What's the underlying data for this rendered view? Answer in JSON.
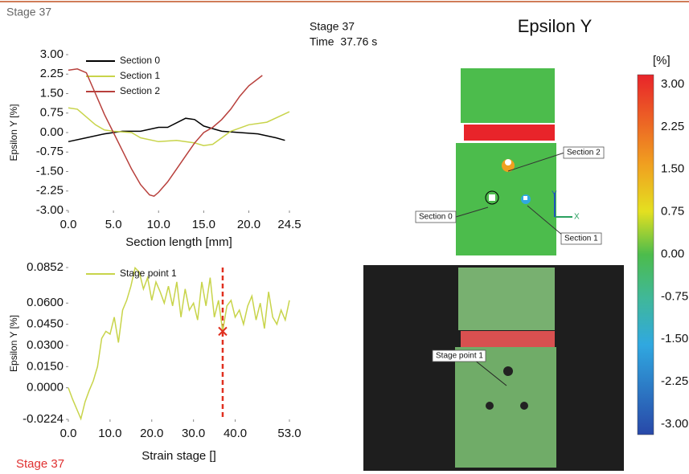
{
  "header": {
    "tab": "Stage 37",
    "stage": "Stage 37",
    "time": "Time  37.76 s",
    "title": "Epsilon Y"
  },
  "chart_data": [
    {
      "type": "line",
      "xlabel": "Section length [mm]",
      "ylabel": "Epsilon Y [%]",
      "xlim": [
        0,
        24.5
      ],
      "ylim": [
        -3,
        3
      ],
      "xticks": [
        {
          "value": 0,
          "label": "0.0"
        },
        {
          "value": 5,
          "label": "5.0"
        },
        {
          "value": 10,
          "label": "10.0"
        },
        {
          "value": 15,
          "label": "15.0"
        },
        {
          "value": 20,
          "label": "20.0"
        },
        {
          "value": 24.5,
          "label": "24.5"
        }
      ],
      "yticks": [
        {
          "value": 3,
          "label": "3.00"
        },
        {
          "value": 2.25,
          "label": "2.25"
        },
        {
          "value": 1.5,
          "label": "1.50"
        },
        {
          "value": 0.75,
          "label": "0.75"
        },
        {
          "value": 0,
          "label": "0.00"
        },
        {
          "value": -0.75,
          "label": "-0.75"
        },
        {
          "value": -1.5,
          "label": "-1.50"
        },
        {
          "value": -2.25,
          "label": "-2.25"
        },
        {
          "value": -3,
          "label": "-3.00"
        }
      ],
      "series": [
        {
          "name": "Section 0",
          "color": "#000000",
          "x": [
            0,
            2,
            4,
            5,
            6,
            8,
            10,
            11,
            13,
            14,
            15,
            17,
            19,
            21,
            23,
            24
          ],
          "values": [
            -0.35,
            -0.2,
            -0.05,
            0,
            0.05,
            0.05,
            0.2,
            0.2,
            0.55,
            0.5,
            0.25,
            0.05,
            0,
            -0.05,
            -0.2,
            -0.3
          ]
        },
        {
          "name": "Section 1",
          "color": "#c8d44a",
          "x": [
            0,
            1,
            2,
            3,
            4,
            5,
            7,
            8,
            10,
            12,
            14,
            15,
            16,
            17,
            18,
            20,
            22,
            24.5
          ],
          "values": [
            0.95,
            0.9,
            0.6,
            0.3,
            0.1,
            0.05,
            0,
            -0.2,
            -0.35,
            -0.3,
            -0.4,
            -0.5,
            -0.45,
            -0.2,
            0.05,
            0.3,
            0.4,
            0.8
          ]
        },
        {
          "name": "Section 2",
          "color": "#b8403c",
          "x": [
            0,
            1,
            2,
            3,
            4,
            5,
            6,
            7,
            8,
            9,
            9.5,
            10,
            11,
            12,
            13,
            14,
            15,
            16,
            17,
            18,
            19,
            20,
            21.5
          ],
          "values": [
            2.4,
            2.45,
            2.3,
            1.5,
            0.7,
            0,
            -0.7,
            -1.4,
            -2.0,
            -2.4,
            -2.45,
            -2.3,
            -1.9,
            -1.4,
            -0.9,
            -0.4,
            0,
            0.2,
            0.5,
            0.9,
            1.4,
            1.8,
            2.2
          ]
        }
      ]
    },
    {
      "type": "line",
      "xlabel": "Strain stage []",
      "ylabel": "Epsilon Y [%]",
      "xlim": [
        0,
        53
      ],
      "ylim": [
        -0.0224,
        0.0852
      ],
      "marker_x": 37,
      "xticks": [
        {
          "value": 0,
          "label": "0.0"
        },
        {
          "value": 10,
          "label": "10.0"
        },
        {
          "value": 20,
          "label": "20.0"
        },
        {
          "value": 30,
          "label": "30.0"
        },
        {
          "value": 40,
          "label": "40.0"
        },
        {
          "value": 53,
          "label": "53.0"
        }
      ],
      "yticks": [
        {
          "value": 0.0852,
          "label": "0.0852"
        },
        {
          "value": 0.06,
          "label": "0.0600"
        },
        {
          "value": 0.045,
          "label": "0.0450"
        },
        {
          "value": 0.03,
          "label": "0.0300"
        },
        {
          "value": 0.015,
          "label": "0.0150"
        },
        {
          "value": 0,
          "label": "0.0000"
        },
        {
          "value": -0.0224,
          "label": "-0.0224"
        }
      ],
      "series": [
        {
          "name": "Stage point 1",
          "color": "#c8d44a",
          "x": [
            0,
            1,
            2,
            3,
            4,
            5,
            6,
            7,
            8,
            9,
            10,
            11,
            12,
            13,
            14,
            15,
            16,
            17,
            18,
            19,
            20,
            21,
            22,
            23,
            24,
            25,
            26,
            27,
            28,
            29,
            30,
            31,
            32,
            33,
            34,
            35,
            36,
            37,
            38,
            39,
            40,
            41,
            42,
            43,
            44,
            45,
            46,
            47,
            48,
            49,
            50,
            51,
            52,
            53
          ],
          "values": [
            0,
            -0.008,
            -0.015,
            -0.022,
            -0.01,
            -0.002,
            0.005,
            0.015,
            0.035,
            0.04,
            0.038,
            0.05,
            0.032,
            0.055,
            0.062,
            0.072,
            0.085,
            0.082,
            0.07,
            0.078,
            0.062,
            0.075,
            0.068,
            0.06,
            0.072,
            0.058,
            0.075,
            0.05,
            0.07,
            0.055,
            0.06,
            0.048,
            0.075,
            0.058,
            0.078,
            0.05,
            0.062,
            0.04,
            0.058,
            0.062,
            0.05,
            0.055,
            0.045,
            0.058,
            0.065,
            0.048,
            0.06,
            0.042,
            0.068,
            0.05,
            0.045,
            0.055,
            0.048,
            0.062
          ]
        }
      ]
    }
  ],
  "colorbar": {
    "unit": "[%]",
    "ticks": [
      {
        "value": 3,
        "label": "3.00"
      },
      {
        "value": 2.25,
        "label": "2.25"
      },
      {
        "value": 1.5,
        "label": "1.50"
      },
      {
        "value": 0.75,
        "label": "0.75"
      },
      {
        "value": 0,
        "label": "0.00"
      },
      {
        "value": -0.75,
        "label": "-0.75"
      },
      {
        "value": -1.5,
        "label": "-1.50"
      },
      {
        "value": -2.25,
        "label": "-2.25"
      },
      {
        "value": -3,
        "label": "-3.00"
      }
    ]
  },
  "image": {
    "section2": "Section 2",
    "section0": "Section 0",
    "section1": "Section 1",
    "point": "Stage point 1",
    "axis_y": "Y",
    "axis_x": "X"
  },
  "footer": {
    "stage": "Stage 37"
  }
}
